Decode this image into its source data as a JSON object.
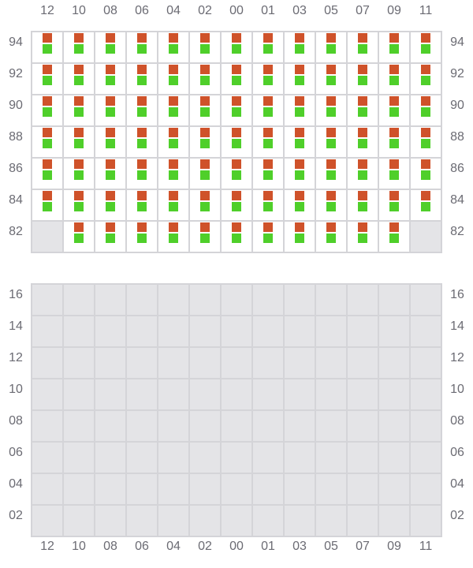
{
  "columns": [
    "12",
    "10",
    "08",
    "06",
    "04",
    "02",
    "00",
    "01",
    "03",
    "05",
    "07",
    "09",
    "11"
  ],
  "colors": {
    "status_top": "#cf522a",
    "status_bottom": "#4fcf2a",
    "empty": "#e4e4e7",
    "grid_line": "#d4d4d8",
    "occupied": "#ffffff"
  },
  "top_grid": {
    "rows": [
      "94",
      "92",
      "90",
      "88",
      "86",
      "84",
      "82"
    ],
    "empty_slots": [
      {
        "row": "82",
        "col": "12"
      },
      {
        "row": "82",
        "col": "11"
      }
    ]
  },
  "bottom_grid": {
    "rows": [
      "16",
      "14",
      "12",
      "10",
      "08",
      "06",
      "04",
      "02"
    ],
    "all_empty": true
  }
}
